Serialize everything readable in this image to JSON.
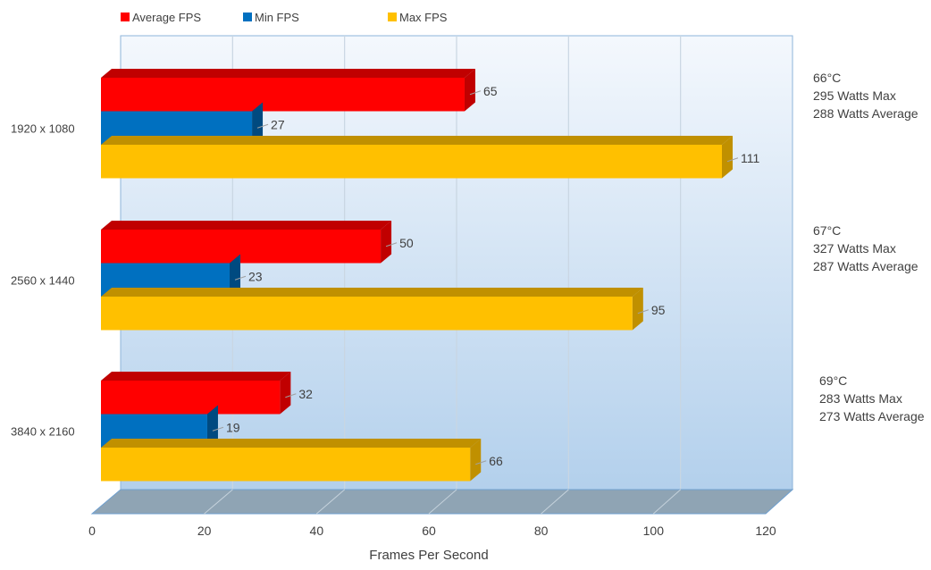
{
  "chart_data": {
    "type": "bar",
    "orientation": "horizontal",
    "style": "3d-clustered",
    "title": "",
    "xlabel": "Frames Per Second",
    "ylabel": "",
    "xlim": [
      0,
      120
    ],
    "xticks": [
      "0",
      "20",
      "40",
      "60",
      "80",
      "100",
      "120"
    ],
    "xtick_values": [
      0,
      20,
      40,
      60,
      80,
      100,
      120
    ],
    "grid": true,
    "legend_position": "top-left",
    "categories": [
      "1920 x 1080",
      "2560 x 1440",
      "3840 x 2160"
    ],
    "series": [
      {
        "name": "Average FPS",
        "color": "#ff0000",
        "side": "#c00000",
        "values": [
          65,
          50,
          32
        ]
      },
      {
        "name": "Min FPS",
        "color": "#0070c0",
        "side": "#004a80",
        "values": [
          27,
          23,
          19
        ]
      },
      {
        "name": "Max FPS",
        "color": "#ffc000",
        "side": "#c09000",
        "values": [
          111,
          95,
          66
        ]
      }
    ],
    "annotations": [
      [
        "66°C",
        "295 Watts Max",
        "288 Watts Average"
      ],
      [
        "67°C",
        "327 Watts Max",
        "287 Watts Average"
      ],
      [
        "69°C",
        "283 Watts Max",
        "273 Watts Average"
      ]
    ]
  }
}
